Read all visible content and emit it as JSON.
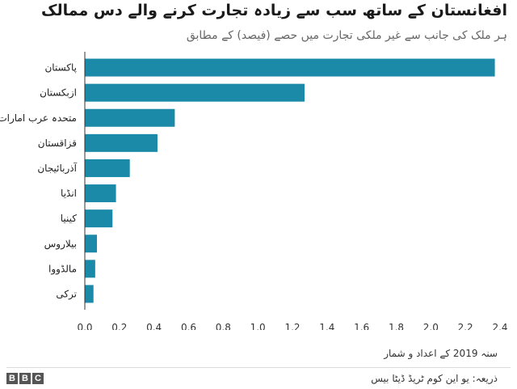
{
  "title": "افغانستان کے ساتھ سب سے زیادہ تجارت کرنے والے دس ممالک",
  "subtitle": "ہر ملک کی جانب سے غیر ملکی تجارت میں حصے (فیصد) کے مطابق",
  "footnote": "سنہ 2019 کے اعداد و شمار",
  "source": "ذریعہ: یو این کوم ٹریڈ ڈیٹا بیس",
  "logo": [
    "B",
    "B",
    "C"
  ],
  "chart_data": {
    "type": "bar",
    "orientation": "horizontal",
    "categories": [
      "پاکستان",
      "ازبکستان",
      "متحدہ عرب امارات",
      "قزاقستان",
      "آذربائیجان",
      "انڈیا",
      "کینیا",
      "بیلاروس",
      "مالڈووا",
      "ترکی"
    ],
    "values": [
      2.37,
      1.27,
      0.52,
      0.42,
      0.26,
      0.18,
      0.16,
      0.07,
      0.06,
      0.05
    ],
    "xlim": [
      0,
      2.4
    ],
    "xticks": [
      "0.0",
      "0.2",
      "0.4",
      "0.6",
      "0.8",
      "1.0",
      "1.2",
      "1.4",
      "1.6",
      "1.8",
      "2.0",
      "2.2",
      "2.4"
    ],
    "bar_color": "#1a8aa8",
    "axis_color": "#333333",
    "grid": false
  }
}
